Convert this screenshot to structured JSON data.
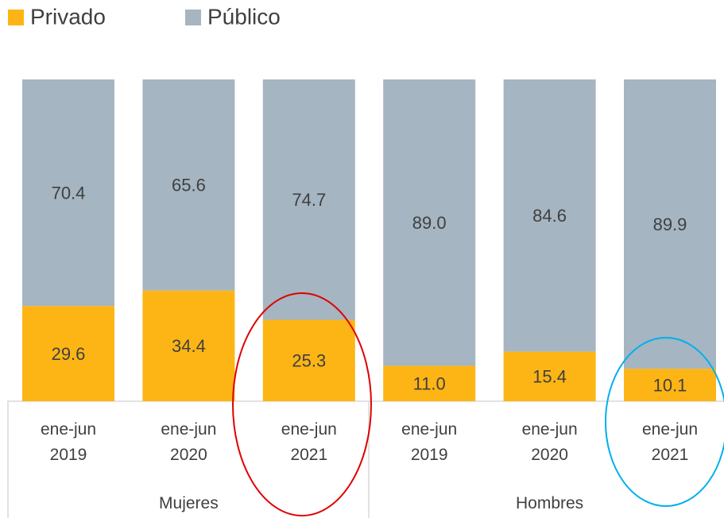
{
  "chart_data": {
    "type": "stacked_bar",
    "groups": [
      {
        "name": "Mujeres",
        "categories": [
          "ene-jun 2019",
          "ene-jun 2020",
          "ene-jun 2021"
        ]
      },
      {
        "name": "Hombres",
        "categories": [
          "ene-jun 2019",
          "ene-jun 2020",
          "ene-jun 2021"
        ]
      }
    ],
    "series": [
      {
        "name": "Privado",
        "color": "#fdb515",
        "values": [
          29.6,
          34.4,
          25.3,
          11.0,
          15.4,
          10.1
        ],
        "value_labels": [
          "29.6",
          "34.4",
          "25.3",
          "11.0",
          "15.4",
          "10.1"
        ]
      },
      {
        "name": "Público",
        "color": "#a5b5c1",
        "values": [
          70.4,
          65.6,
          74.7,
          89.0,
          84.6,
          89.9
        ],
        "value_labels": [
          "70.4",
          "65.6",
          "74.7",
          "89.0",
          "84.6",
          "89.9"
        ]
      }
    ],
    "ylim": [
      0,
      100
    ]
  }
}
